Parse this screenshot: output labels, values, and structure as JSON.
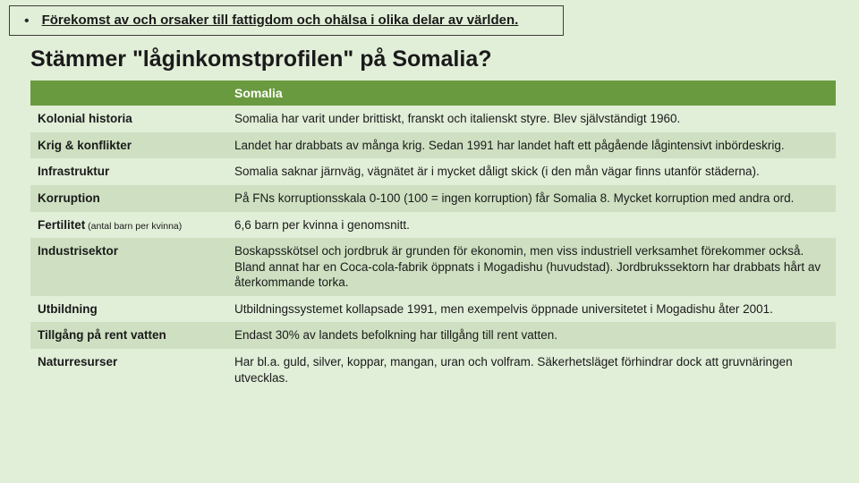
{
  "bullet": {
    "text": "Förekomst av och orsaker till fattigdom och ohälsa i olika delar av världen."
  },
  "heading": "Stämmer \"låginkomstprofilen\" på Somalia?",
  "table": {
    "header_empty": "",
    "header_country": "Somalia",
    "rows": [
      {
        "label": "Kolonial historia",
        "sub": "",
        "value": "Somalia har varit under brittiskt, franskt och italienskt styre. Blev självständigt 1960."
      },
      {
        "label": "Krig & konflikter",
        "sub": "",
        "value": "Landet har drabbats av många krig. Sedan 1991 har landet haft ett pågående lågintensivt inbördeskrig."
      },
      {
        "label": "Infrastruktur",
        "sub": "",
        "value": "Somalia saknar järnväg, vägnätet är i mycket dåligt skick (i den mån vägar finns utanför städerna)."
      },
      {
        "label": "Korruption",
        "sub": "",
        "value": "På FNs korruptionsskala 0-100 (100 = ingen korruption) får Somalia 8. Mycket korruption med andra ord."
      },
      {
        "label": "Fertilitet",
        "sub": " (antal barn per kvinna)",
        "value": "6,6 barn per kvinna i genomsnitt."
      },
      {
        "label": "Industrisektor",
        "sub": "",
        "value": "Boskapsskötsel och jordbruk är grunden för ekonomin, men viss industriell verksamhet förekommer också. Bland annat har en Coca-cola-fabrik öppnats i Mogadishu (huvudstad). Jordbrukssektorn har drabbats hårt av återkommande torka."
      },
      {
        "label": "Utbildning",
        "sub": "",
        "value": "Utbildningssystemet kollapsade 1991, men exempelvis öppnade universitetet i Mogadishu åter 2001."
      },
      {
        "label": "Tillgång på rent vatten",
        "sub": "",
        "value": "Endast 30% av landets befolkning har tillgång till rent vatten."
      },
      {
        "label": "Naturresurser",
        "sub": "",
        "value": "Har bl.a. guld, silver, koppar, mangan, uran och volfram. Säkerhetsläget förhindrar dock att gruvnäringen utvecklas."
      }
    ]
  },
  "colors": {
    "page_bg": "#e1eed8",
    "header_bg": "#6a9a3f",
    "row_odd_bg": "#e1eed8",
    "row_even_bg": "#cee0c1",
    "text": "#1a1a1a",
    "header_text": "#ffffff"
  }
}
